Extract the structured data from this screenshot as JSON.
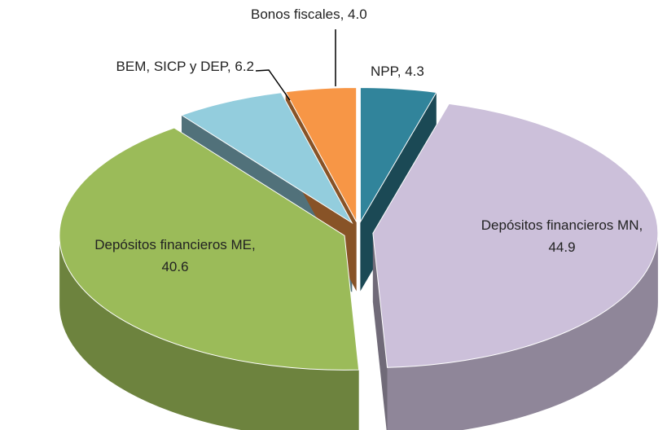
{
  "chart_data": {
    "type": "pie3d",
    "categories": [
      "NPP",
      "Depósitos financieros MN",
      "Depósitos financieros ME",
      "BEM, SICP y DEP",
      "Bonos fiscales"
    ],
    "values": [
      4.3,
      44.9,
      40.6,
      6.2,
      4.0
    ],
    "value_labels": [
      "NPP, 4.3",
      "Depósitos financieros MN, 44.9",
      "Depósitos financieros ME, 40.6",
      "BEM, SICP y DEP, 6.2",
      "Bonos fiscales, 4.0"
    ],
    "colors": [
      "#31849b",
      "#ccc0da",
      "#9bbb59",
      "#93cddd",
      "#f79646"
    ]
  }
}
